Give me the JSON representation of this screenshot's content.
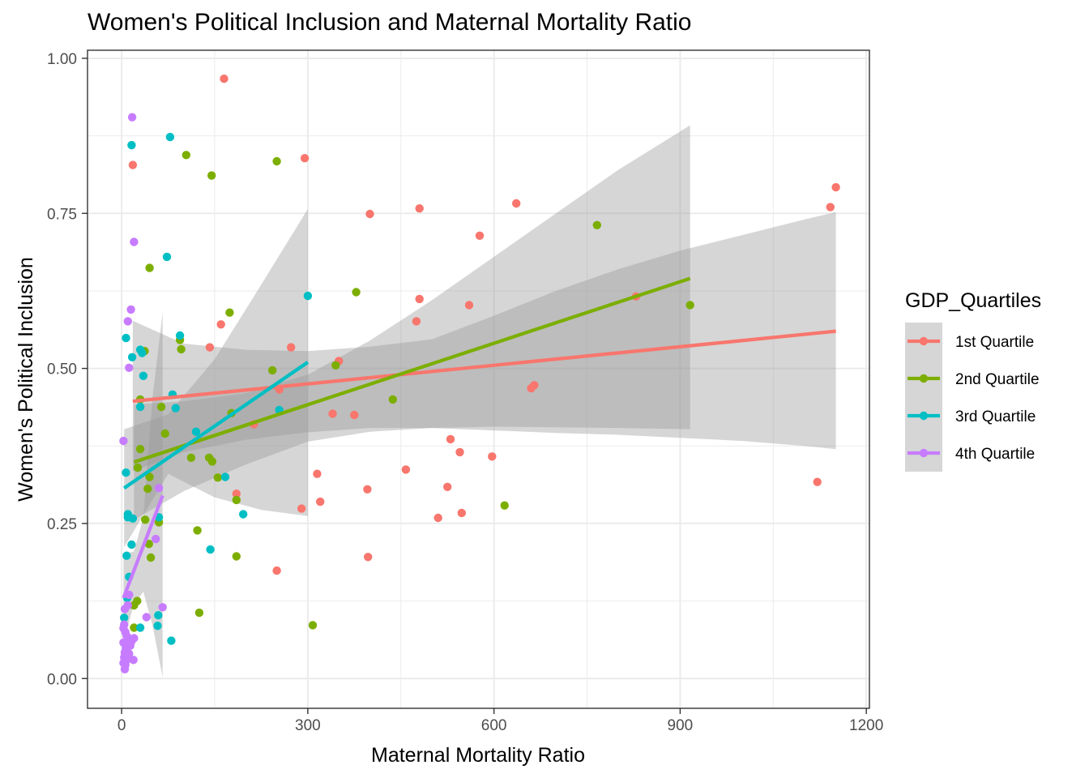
{
  "chart_data": {
    "type": "scatter",
    "title": "Women's Political Inclusion and Maternal Mortality Ratio",
    "xlabel": "Maternal Mortality Ratio",
    "ylabel": "Women's Political Inclusion",
    "xlim": [
      -55,
      1205
    ],
    "ylim": [
      -0.048,
      1.013
    ],
    "x_ticks": [
      0,
      300,
      600,
      900,
      1200
    ],
    "x_tick_labels": [
      "0",
      "300",
      "600",
      "900",
      "1200"
    ],
    "y_ticks": [
      0,
      0.25,
      0.5,
      0.75,
      1.0
    ],
    "y_tick_labels": [
      "0.00",
      "0.25",
      "0.50",
      "0.75",
      "1.00"
    ],
    "grid": true,
    "legend": {
      "title": "GDP_Quartiles",
      "position": "right"
    },
    "series": [
      {
        "name": "1st Quartile",
        "color": "#f8766d",
        "points": [
          [
            165,
            0.967
          ],
          [
            18,
            0.828
          ],
          [
            295,
            0.839
          ],
          [
            1151,
            0.792
          ],
          [
            1142,
            0.76
          ],
          [
            636,
            0.766
          ],
          [
            480,
            0.758
          ],
          [
            400,
            0.749
          ],
          [
            577,
            0.714
          ],
          [
            829,
            0.616
          ],
          [
            480,
            0.612
          ],
          [
            560,
            0.602
          ],
          [
            475,
            0.576
          ],
          [
            160,
            0.571
          ],
          [
            142,
            0.534
          ],
          [
            273,
            0.534
          ],
          [
            350,
            0.512
          ],
          [
            254,
            0.466
          ],
          [
            665,
            0.473
          ],
          [
            660,
            0.468
          ],
          [
            340,
            0.427
          ],
          [
            375,
            0.425
          ],
          [
            213,
            0.41
          ],
          [
            530,
            0.386
          ],
          [
            545,
            0.365
          ],
          [
            597,
            0.358
          ],
          [
            458,
            0.337
          ],
          [
            315,
            0.33
          ],
          [
            525,
            0.309
          ],
          [
            396,
            0.305
          ],
          [
            185,
            0.298
          ],
          [
            1121,
            0.317
          ],
          [
            320,
            0.285
          ],
          [
            290,
            0.274
          ],
          [
            548,
            0.267
          ],
          [
            510,
            0.259
          ],
          [
            250,
            0.174
          ],
          [
            397,
            0.196
          ]
        ],
        "fit": {
          "x": [
            18,
            1151
          ],
          "y": [
            0.447,
            0.56
          ]
        },
        "band": {
          "x": [
            18,
            100,
            200,
            300,
            400,
            500,
            600,
            700,
            800,
            900,
            1000,
            1100,
            1151
          ],
          "lower": [
            0.334,
            0.365,
            0.385,
            0.397,
            0.404,
            0.404,
            0.4,
            0.396,
            0.393,
            0.388,
            0.383,
            0.375,
            0.37
          ],
          "upper": [
            0.577,
            0.54,
            0.53,
            0.528,
            0.535,
            0.547,
            0.585,
            0.625,
            0.66,
            0.69,
            0.715,
            0.74,
            0.752
          ]
        }
      },
      {
        "name": "2nd Quartile",
        "color": "#7cae00",
        "points": [
          [
            104,
            0.844
          ],
          [
            145,
            0.811
          ],
          [
            250,
            0.834
          ],
          [
            766,
            0.731
          ],
          [
            916,
            0.602
          ],
          [
            45,
            0.662
          ],
          [
            378,
            0.623
          ],
          [
            174,
            0.59
          ],
          [
            94,
            0.546
          ],
          [
            96,
            0.531
          ],
          [
            37,
            0.528
          ],
          [
            345,
            0.505
          ],
          [
            243,
            0.497
          ],
          [
            30,
            0.45
          ],
          [
            437,
            0.45
          ],
          [
            64,
            0.438
          ],
          [
            177,
            0.428
          ],
          [
            70,
            0.395
          ],
          [
            112,
            0.356
          ],
          [
            141,
            0.356
          ],
          [
            146,
            0.35
          ],
          [
            30,
            0.37
          ],
          [
            26,
            0.34
          ],
          [
            45,
            0.325
          ],
          [
            155,
            0.324
          ],
          [
            42,
            0.306
          ],
          [
            185,
            0.288
          ],
          [
            617,
            0.279
          ],
          [
            38,
            0.256
          ],
          [
            60,
            0.252
          ],
          [
            122,
            0.239
          ],
          [
            44,
            0.217
          ],
          [
            47,
            0.195
          ],
          [
            185,
            0.197
          ],
          [
            25,
            0.125
          ],
          [
            20,
            0.118
          ],
          [
            125,
            0.106
          ],
          [
            20,
            0.082
          ],
          [
            308,
            0.086
          ]
        ],
        "fit": {
          "x": [
            20,
            916
          ],
          "y": [
            0.349,
            0.645
          ]
        },
        "band": {
          "x": [
            20,
            100,
            200,
            300,
            400,
            500,
            600,
            700,
            800,
            916
          ],
          "lower": [
            0.256,
            0.302,
            0.345,
            0.382,
            0.398,
            0.404,
            0.406,
            0.405,
            0.404,
            0.402
          ],
          "upper": [
            0.442,
            0.447,
            0.46,
            0.49,
            0.545,
            0.61,
            0.68,
            0.75,
            0.82,
            0.892
          ]
        }
      },
      {
        "name": "3rd Quartile",
        "color": "#00bfc4",
        "points": [
          [
            16,
            0.86
          ],
          [
            78,
            0.873
          ],
          [
            73,
            0.68
          ],
          [
            300,
            0.617
          ],
          [
            94,
            0.553
          ],
          [
            7,
            0.549
          ],
          [
            17,
            0.518
          ],
          [
            30,
            0.53
          ],
          [
            33,
            0.525
          ],
          [
            35,
            0.488
          ],
          [
            82,
            0.458
          ],
          [
            30,
            0.438
          ],
          [
            87,
            0.436
          ],
          [
            120,
            0.398
          ],
          [
            254,
            0.433
          ],
          [
            167,
            0.325
          ],
          [
            7,
            0.332
          ],
          [
            10,
            0.265
          ],
          [
            10,
            0.26
          ],
          [
            18,
            0.258
          ],
          [
            60,
            0.26
          ],
          [
            196,
            0.265
          ],
          [
            143,
            0.208
          ],
          [
            16,
            0.216
          ],
          [
            8,
            0.198
          ],
          [
            12,
            0.164
          ],
          [
            9,
            0.13
          ],
          [
            4,
            0.098
          ],
          [
            59,
            0.102
          ],
          [
            58,
            0.085
          ],
          [
            30,
            0.082
          ],
          [
            80,
            0.061
          ]
        ],
        "fit": {
          "x": [
            4,
            300
          ],
          "y": [
            0.307,
            0.51
          ]
        },
        "band": {
          "x": [
            4,
            75,
            150,
            225,
            300
          ],
          "lower": [
            0.212,
            0.33,
            0.292,
            0.272,
            0.262
          ],
          "upper": [
            0.402,
            0.426,
            0.515,
            0.635,
            0.757
          ]
        }
      },
      {
        "name": "4th Quartile",
        "color": "#c77cff",
        "points": [
          [
            17,
            0.905
          ],
          [
            20,
            0.704
          ],
          [
            15,
            0.595
          ],
          [
            10,
            0.576
          ],
          [
            12,
            0.501
          ],
          [
            3,
            0.383
          ],
          [
            60,
            0.307
          ],
          [
            55,
            0.225
          ],
          [
            12,
            0.135
          ],
          [
            66,
            0.115
          ],
          [
            10,
            0.118
          ],
          [
            5,
            0.112
          ],
          [
            40,
            0.099
          ],
          [
            4,
            0.087
          ],
          [
            3,
            0.081
          ],
          [
            6,
            0.075
          ],
          [
            8,
            0.069
          ],
          [
            11,
            0.065
          ],
          [
            20,
            0.065
          ],
          [
            16,
            0.06
          ],
          [
            3,
            0.058
          ],
          [
            10,
            0.057
          ],
          [
            14,
            0.053
          ],
          [
            7,
            0.049
          ],
          [
            5,
            0.042
          ],
          [
            12,
            0.04
          ],
          [
            4,
            0.034
          ],
          [
            8,
            0.03
          ],
          [
            19,
            0.03
          ],
          [
            3,
            0.025
          ],
          [
            6,
            0.022
          ],
          [
            5,
            0.015
          ]
        ],
        "fit": {
          "x": [
            3,
            66
          ],
          "y": [
            0.13,
            0.295
          ]
        },
        "band": {
          "x": [
            3,
            20,
            35,
            50,
            66
          ],
          "lower": [
            0.06,
            0.12,
            0.14,
            0.085,
            0.002
          ],
          "upper": [
            0.2,
            0.205,
            0.26,
            0.455,
            0.59
          ]
        }
      }
    ]
  }
}
